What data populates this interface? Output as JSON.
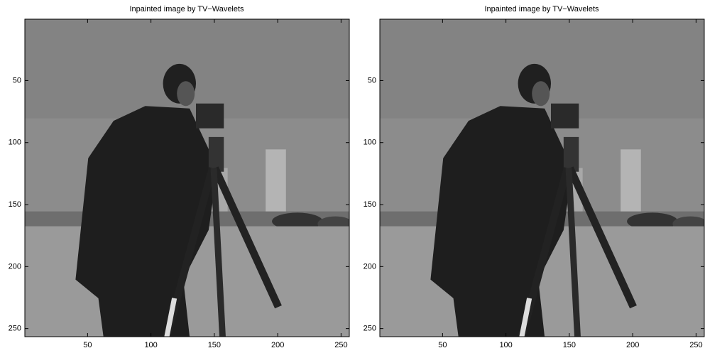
{
  "panels": [
    {
      "title": "Inpainted image by TV−Wavelets",
      "xlim": [
        0.5,
        256.5
      ],
      "ylim": [
        0.5,
        256.5
      ],
      "xticks": [
        50,
        100,
        150,
        200,
        250
      ],
      "yticks": [
        50,
        100,
        150,
        200,
        250
      ]
    },
    {
      "title": "Inpainted image by TV−Wavelets",
      "xlim": [
        0.5,
        256.5
      ],
      "ylim": [
        0.5,
        256.5
      ],
      "xticks": [
        50,
        100,
        150,
        200,
        250
      ],
      "yticks": [
        50,
        100,
        150,
        200,
        250
      ]
    }
  ]
}
